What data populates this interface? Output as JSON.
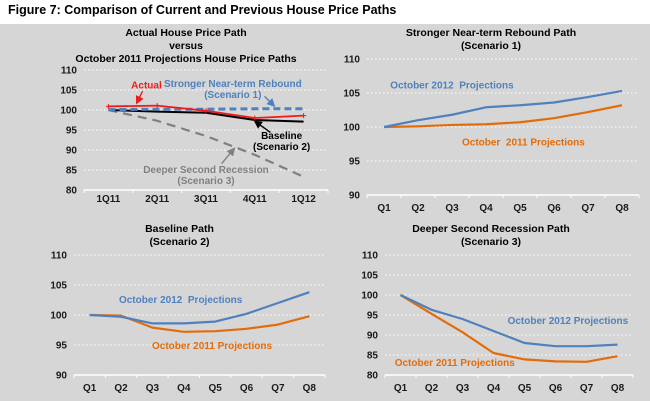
{
  "figure_title": "Figure 7: Comparison of Current and Previous House Price Paths",
  "colors": {
    "background": "#d6d6d6",
    "blue": "#4f81bd",
    "orange": "#e36c0a",
    "red": "#ed1c1c",
    "black": "#000000",
    "gray": "#808080",
    "grid": "#ffffff",
    "tick_text": "#1a1a1a"
  },
  "chart_data": [
    {
      "id": "actual-vs-october-2011-projections",
      "type": "line",
      "title_lines": [
        "Actual House Price Path",
        "versus",
        "October 2011 Projections House Price Paths"
      ],
      "categories": [
        "1Q11",
        "2Q11",
        "3Q11",
        "4Q11",
        "1Q12"
      ],
      "ylim": [
        80,
        110
      ],
      "yticks": [
        80,
        85,
        90,
        95,
        100,
        105,
        110
      ],
      "grid": true,
      "legend_position": "inline-annotations",
      "series": [
        {
          "name": "Actual",
          "color": "red",
          "dash": "solid",
          "width": 1.8,
          "markers": "plus",
          "values": [
            100.9,
            101.1,
            99.8,
            98.0,
            98.6
          ]
        },
        {
          "name": "Stronger Near-term Rebound (Scenario 1)",
          "color": "blue",
          "dash": "dash",
          "width": 3,
          "values": [
            100.1,
            100.2,
            100.2,
            100.3,
            100.3
          ]
        },
        {
          "name": "Baseline (Scenario 2)",
          "color": "black",
          "dash": "solid",
          "width": 2,
          "values": [
            100,
            99.6,
            99.3,
            97.5,
            97.1
          ]
        },
        {
          "name": "Deeper Second Recession (Scenario 3)",
          "color": "gray",
          "dash": "longdash",
          "width": 2.2,
          "values": [
            100,
            97.3,
            93.5,
            88.8,
            83.3
          ]
        }
      ],
      "annotations": [
        {
          "lines": [
            "Actual"
          ],
          "color": "red",
          "x": 0.78,
          "y": 106.2,
          "arrow": {
            "x1": 0.7,
            "y1": 104.7,
            "x2": 0.58,
            "y2": 101.7
          }
        },
        {
          "lines": [
            "Stronger Near-term Rebound",
            "(Scenario 1)"
          ],
          "color": "blue",
          "x": 2.55,
          "y": 105.2,
          "arrow": {
            "x1": 3.2,
            "y1": 103.4,
            "x2": 3.4,
            "y2": 101.0
          }
        },
        {
          "lines": [
            "Baseline",
            "(Scenario 2)"
          ],
          "color": "black",
          "x": 3.55,
          "y": 92.2,
          "arrow": {
            "x1": 3.32,
            "y1": 94.4,
            "x2": 3.0,
            "y2": 97.2
          }
        },
        {
          "lines": [
            "Deeper Second Recession",
            "(Scenario 3)"
          ],
          "color": "gray",
          "x": 2.0,
          "y": 83.8,
          "arrow": {
            "x1": 2.32,
            "y1": 86.6,
            "x2": 2.58,
            "y2": 90.4
          }
        }
      ]
    },
    {
      "id": "stronger-near-term-rebound-path",
      "type": "line",
      "title_lines": [
        "Stronger Near-term Rebound Path",
        "(Scenario 1)"
      ],
      "categories": [
        "Q1",
        "Q2",
        "Q3",
        "Q4",
        "Q5",
        "Q6",
        "Q7",
        "Q8"
      ],
      "ylim": [
        90,
        110
      ],
      "yticks": [
        90,
        95,
        100,
        105,
        110
      ],
      "grid": true,
      "legend_position": "inline-annotations",
      "series": [
        {
          "name": "October 2012  Projections",
          "color": "blue",
          "dash": "solid",
          "width": 2.2,
          "values": [
            100,
            101,
            101.8,
            102.9,
            103.2,
            103.6,
            104.4,
            105.3
          ]
        },
        {
          "name": "October  2011 Projections",
          "color": "orange",
          "dash": "solid",
          "width": 2.2,
          "values": [
            100,
            100.1,
            100.3,
            100.4,
            100.7,
            101.3,
            102.2,
            103.2
          ]
        }
      ],
      "annotations": [
        {
          "lines": [
            "October 2012  Projections"
          ],
          "color": "blue",
          "x": 2.0,
          "y": 106.2
        },
        {
          "lines": [
            "October  2011 Projections"
          ],
          "color": "orange",
          "x": 4.1,
          "y": 97.8
        }
      ]
    },
    {
      "id": "baseline-path",
      "type": "line",
      "title_lines": [
        "Baseline Path",
        "(Scenario 2)"
      ],
      "categories": [
        "Q1",
        "Q2",
        "Q3",
        "Q4",
        "Q5",
        "Q6",
        "Q7",
        "Q8"
      ],
      "ylim": [
        90,
        110
      ],
      "yticks": [
        90,
        95,
        100,
        105,
        110
      ],
      "grid": true,
      "legend_position": "inline-annotations",
      "series": [
        {
          "name": "October 2012  Projections",
          "color": "blue",
          "dash": "solid",
          "width": 2.2,
          "values": [
            100,
            99.7,
            98.6,
            98.6,
            98.9,
            100.2,
            102.0,
            103.8
          ]
        },
        {
          "name": "October 2011 Projections",
          "color": "orange",
          "dash": "solid",
          "width": 2.2,
          "values": [
            100,
            99.9,
            97.9,
            97.2,
            97.3,
            97.7,
            98.4,
            99.8
          ]
        }
      ],
      "annotations": [
        {
          "lines": [
            "October 2012  Projections"
          ],
          "color": "blue",
          "x": 2.9,
          "y": 102.6
        },
        {
          "lines": [
            "October 2011 Projections"
          ],
          "color": "orange",
          "x": 3.9,
          "y": 94.9
        }
      ]
    },
    {
      "id": "deeper-second-recession-path",
      "type": "line",
      "title_lines": [
        "Deeper Second Recession Path",
        "(Scenario 3)"
      ],
      "categories": [
        "Q1",
        "Q2",
        "Q3",
        "Q4",
        "Q5",
        "Q6",
        "Q7",
        "Q8"
      ],
      "ylim": [
        80,
        110
      ],
      "yticks": [
        80,
        85,
        90,
        95,
        100,
        105,
        110
      ],
      "grid": true,
      "legend_position": "inline-annotations",
      "series": [
        {
          "name": "October 2012 Projections",
          "color": "blue",
          "dash": "solid",
          "width": 2.2,
          "values": [
            100,
            96.3,
            94.0,
            91.0,
            88.0,
            87.2,
            87.2,
            87.6
          ]
        },
        {
          "name": "October 2011 Projections",
          "color": "orange",
          "dash": "solid",
          "width": 2.2,
          "values": [
            100,
            95.3,
            90.7,
            85.5,
            83.9,
            83.4,
            83.3,
            84.7
          ]
        }
      ],
      "annotations": [
        {
          "lines": [
            "October 2012 Projections"
          ],
          "color": "blue",
          "x": 5.4,
          "y": 93.6
        },
        {
          "lines": [
            "October 2011 Projections"
          ],
          "color": "orange",
          "x": 1.75,
          "y": 83.1
        }
      ]
    }
  ]
}
